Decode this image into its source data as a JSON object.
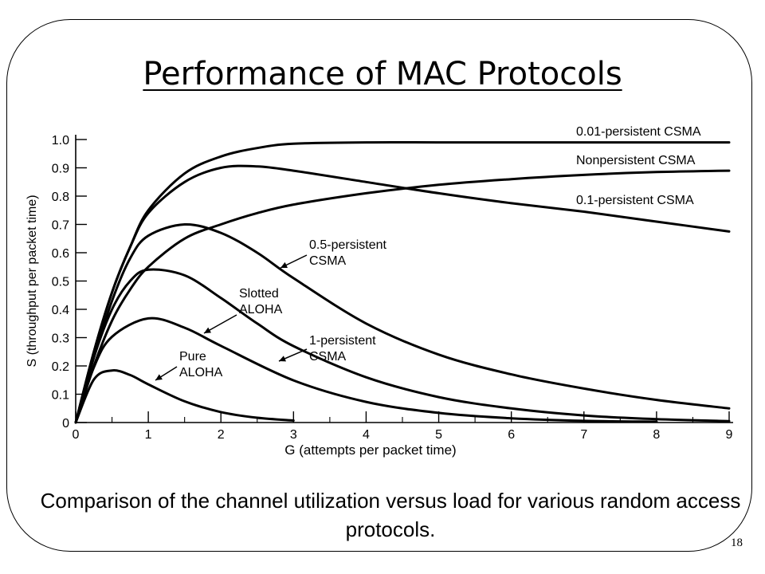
{
  "slide": {
    "title": "Performance of MAC Protocols",
    "caption": "Comparison of the channel utilization versus load for various random access protocols.",
    "page_number": "18"
  },
  "chart_data": {
    "type": "line",
    "xlabel": "G (attempts per packet time)",
    "ylabel": "S (throughput per packet time)",
    "xlim": [
      0,
      9
    ],
    "ylim": [
      0,
      1.0
    ],
    "x_ticks": [
      "0",
      "1",
      "2",
      "3",
      "4",
      "5",
      "6",
      "7",
      "8",
      "9"
    ],
    "y_ticks": [
      "0",
      "0.1",
      "0.2",
      "0.3",
      "0.4",
      "0.5",
      "0.6",
      "0.7",
      "0.8",
      "0.9",
      "1.0"
    ],
    "grid": false,
    "legend": "none",
    "series": [
      {
        "name": "Pure ALOHA",
        "x": [
          0,
          0.25,
          0.5,
          0.75,
          1,
          1.5,
          2,
          2.5,
          3
        ],
        "y": [
          0,
          0.152,
          0.184,
          0.168,
          0.135,
          0.075,
          0.037,
          0.017,
          0.007
        ]
      },
      {
        "name": "Slotted ALOHA",
        "x": [
          0,
          0.25,
          0.5,
          1,
          1.5,
          2,
          3,
          4,
          5,
          6,
          7,
          8
        ],
        "y": [
          0,
          0.195,
          0.303,
          0.368,
          0.335,
          0.271,
          0.149,
          0.073,
          0.034,
          0.015,
          0.006,
          0.003
        ]
      },
      {
        "name": "1-persistent CSMA",
        "x": [
          0,
          0.25,
          0.5,
          0.75,
          1,
          1.5,
          2,
          2.5,
          3,
          4,
          5,
          6,
          7,
          8,
          9
        ],
        "y": [
          0,
          0.23,
          0.4,
          0.5,
          0.54,
          0.52,
          0.44,
          0.35,
          0.27,
          0.16,
          0.09,
          0.05,
          0.025,
          0.012,
          0.005
        ]
      },
      {
        "name": "0.5-persistent CSMA",
        "x": [
          0,
          0.25,
          0.5,
          0.75,
          1,
          1.5,
          2,
          2.5,
          3,
          4,
          5,
          6,
          7,
          8,
          9
        ],
        "y": [
          0,
          0.23,
          0.43,
          0.58,
          0.66,
          0.7,
          0.67,
          0.6,
          0.51,
          0.35,
          0.24,
          0.17,
          0.12,
          0.08,
          0.05
        ]
      },
      {
        "name": "0.1-persistent CSMA",
        "x": [
          0,
          0.25,
          0.5,
          0.75,
          1,
          1.5,
          2,
          2.5,
          3,
          4,
          5,
          6,
          7,
          8,
          9
        ],
        "y": [
          0,
          0.2,
          0.36,
          0.47,
          0.55,
          0.65,
          0.7,
          0.74,
          0.77,
          0.81,
          0.84,
          0.86,
          0.875,
          0.885,
          0.89
        ]
      },
      {
        "name": "Nonpersistent CSMA",
        "x": [
          0,
          0.25,
          0.5,
          0.75,
          1,
          1.5,
          2,
          2.5,
          3,
          4,
          5,
          6,
          7,
          8,
          9
        ],
        "y": [
          0,
          0.25,
          0.46,
          0.62,
          0.74,
          0.85,
          0.9,
          0.905,
          0.89,
          0.85,
          0.81,
          0.775,
          0.745,
          0.71,
          0.675
        ]
      },
      {
        "name": "0.01-persistent CSMA",
        "x": [
          0,
          0.25,
          0.5,
          0.75,
          1,
          1.5,
          2,
          2.5,
          3,
          4,
          5,
          6,
          7,
          8,
          9
        ],
        "y": [
          0,
          0.25,
          0.46,
          0.62,
          0.75,
          0.88,
          0.94,
          0.97,
          0.985,
          0.99,
          0.99,
          0.99,
          0.99,
          0.99,
          0.99
        ]
      }
    ],
    "annotations": [
      {
        "series": "0.01-persistent CSMA",
        "lines": [
          "0.01-persistent CSMA"
        ]
      },
      {
        "series": "Nonpersistent CSMA",
        "lines": [
          "Nonpersistent CSMA"
        ]
      },
      {
        "series": "0.1-persistent CSMA",
        "lines": [
          "0.1-persistent CSMA"
        ]
      },
      {
        "series": "0.5-persistent CSMA",
        "lines": [
          "0.5-persistent",
          "CSMA"
        ]
      },
      {
        "series": "Slotted ALOHA",
        "lines": [
          "Slotted",
          "ALOHA"
        ]
      },
      {
        "series": "1-persistent CSMA",
        "lines": [
          "1-persistent",
          "CSMA"
        ]
      },
      {
        "series": "Pure ALOHA",
        "lines": [
          "Pure",
          "ALOHA"
        ]
      }
    ]
  }
}
